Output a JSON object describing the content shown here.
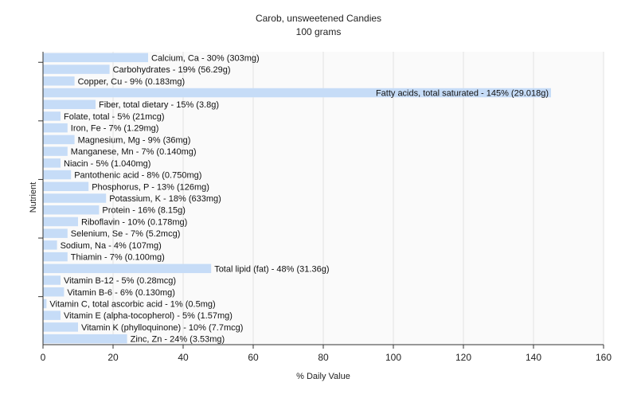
{
  "chart_data": {
    "type": "bar",
    "orientation": "horizontal",
    "title": "Carob, unsweetened Candies",
    "subtitle": "100 grams",
    "xlabel": "% Daily Value",
    "ylabel": "Nutrient",
    "xlim": [
      0,
      160
    ],
    "xticks": [
      0,
      20,
      40,
      60,
      80,
      100,
      120,
      140,
      160
    ],
    "grid": true,
    "bar_color": "#c6dcf7",
    "categories": [
      "Calcium, Ca",
      "Carbohydrates",
      "Copper, Cu",
      "Fatty acids, total saturated",
      "Fiber, total dietary",
      "Folate, total",
      "Iron, Fe",
      "Magnesium, Mg",
      "Manganese, Mn",
      "Niacin",
      "Pantothenic acid",
      "Phosphorus, P",
      "Potassium, K",
      "Protein",
      "Riboflavin",
      "Selenium, Se",
      "Sodium, Na",
      "Thiamin",
      "Total lipid (fat)",
      "Vitamin B-12",
      "Vitamin B-6",
      "Vitamin C, total ascorbic acid",
      "Vitamin E (alpha-tocopherol)",
      "Vitamin K (phylloquinone)",
      "Zinc, Zn"
    ],
    "values": [
      30,
      19,
      9,
      145,
      15,
      5,
      7,
      9,
      7,
      5,
      8,
      13,
      18,
      16,
      10,
      7,
      4,
      7,
      48,
      5,
      6,
      1,
      5,
      10,
      24
    ],
    "labels": [
      "Calcium, Ca - 30% (303mg)",
      "Carbohydrates - 19% (56.29g)",
      "Copper, Cu - 9% (0.183mg)",
      "Fatty acids, total saturated - 145% (29.018g)",
      "Fiber, total dietary - 15% (3.8g)",
      "Folate, total - 5% (21mcg)",
      "Iron, Fe - 7% (1.29mg)",
      "Magnesium, Mg - 9% (36mg)",
      "Manganese, Mn - 7% (0.140mg)",
      "Niacin - 5% (1.040mg)",
      "Pantothenic acid - 8% (0.750mg)",
      "Phosphorus, P - 13% (126mg)",
      "Potassium, K - 18% (633mg)",
      "Protein - 16% (8.15g)",
      "Riboflavin - 10% (0.178mg)",
      "Selenium, Se - 7% (5.2mcg)",
      "Sodium, Na - 4% (107mg)",
      "Thiamin - 7% (0.100mg)",
      "Total lipid (fat) - 48% (31.36g)",
      "Vitamin B-12 - 5% (0.28mcg)",
      "Vitamin B-6 - 6% (0.130mg)",
      "Vitamin C, total ascorbic acid - 1% (0.5mg)",
      "Vitamin E (alpha-tocopherol) - 5% (1.57mg)",
      "Vitamin K (phylloquinone) - 10% (7.7mcg)",
      "Zinc, Zn - 24% (3.53mg)"
    ]
  }
}
